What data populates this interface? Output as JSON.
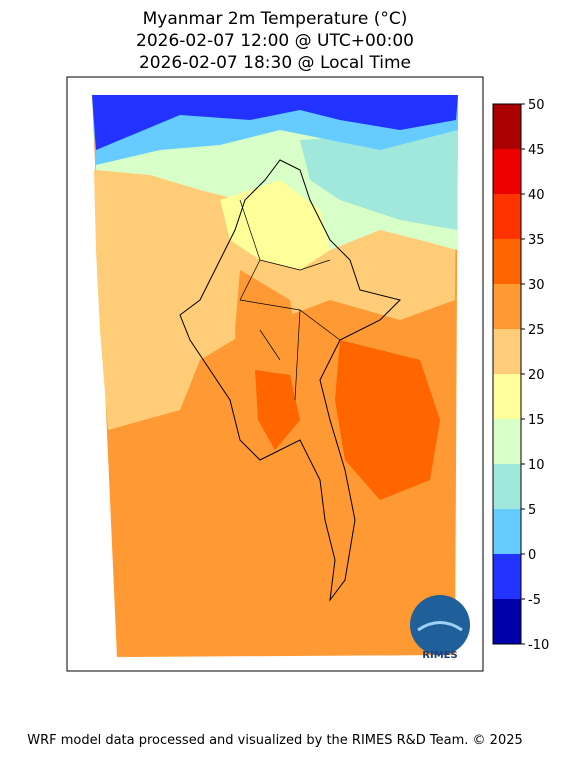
{
  "title": [
    "Myanmar 2m Temperature (°C)",
    "2026-02-07 12:00 @ UTC+00:00",
    "2026-02-07 18:30 @ Local Time"
  ],
  "colorbar": {
    "lim": [
      -10,
      50
    ],
    "ticks": [
      -10,
      -5,
      0,
      5,
      10,
      15,
      20,
      25,
      30,
      35,
      40,
      45,
      50
    ],
    "colors": [
      "#0000aa",
      "#2233ff",
      "#66ccff",
      "#a0e8dc",
      "#d9ffc8",
      "#ffff99",
      "#ffcc77",
      "#ff9933",
      "#ff6600",
      "#ff3300",
      "#ee0000",
      "#aa0000"
    ]
  },
  "logo": "RIMES",
  "footer": "WRF model data processed and visualized by the RIMES R&D Team. © 2025"
}
